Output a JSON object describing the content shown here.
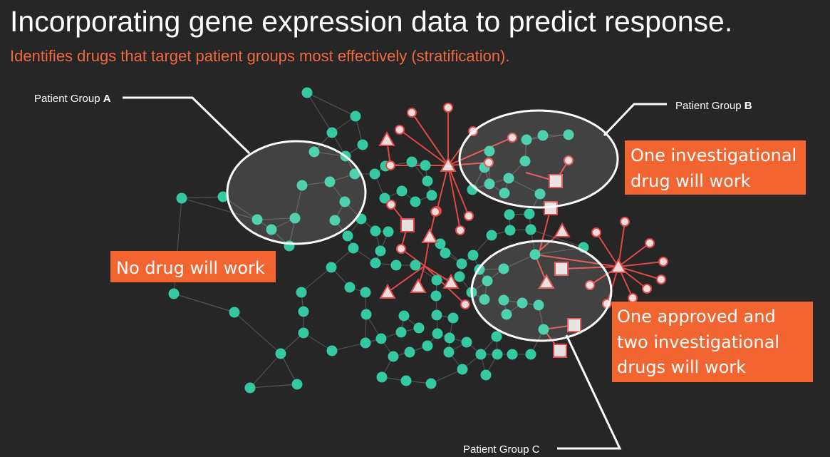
{
  "title": "Incorporating gene expression data to predict response.",
  "subtitle": "Identifies drugs that target patient groups most effectively (stratification).",
  "groups": [
    {
      "text": "Patient Group ",
      "letter": "A",
      "letter_bold": true
    },
    {
      "text": "Patient Group ",
      "letter": "B",
      "letter_bold": true
    },
    {
      "text": "Patient Group ",
      "letter": "C",
      "letter_bold": false
    }
  ],
  "callouts": [
    {
      "lines": [
        "No drug will work"
      ]
    },
    {
      "lines": [
        "One investigational",
        "drug will work"
      ]
    },
    {
      "lines": [
        "One approved and",
        "two investigational",
        "drugs will work"
      ]
    }
  ]
}
